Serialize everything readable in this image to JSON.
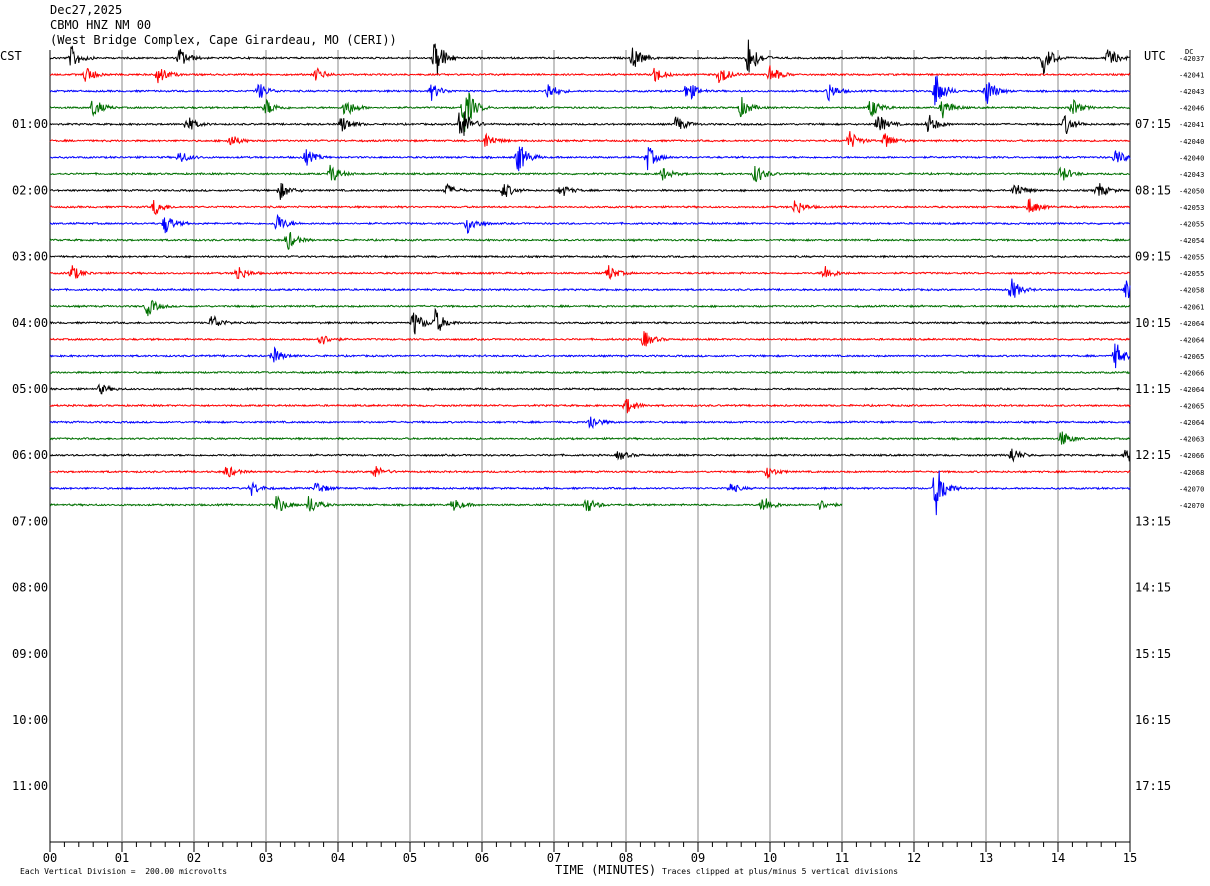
{
  "header": {
    "date": "Dec27,2025",
    "station": "CBMO HNZ NM 00",
    "location": "(West Bridge Complex, Cape Girardeau, MO (CERI))"
  },
  "axis_left_label": "CST",
  "axis_right_label": "UTC",
  "dc_label": "DC",
  "footer": {
    "scale_note": "Each Vertical Division =  200.00 microvolts",
    "xlabel": "TIME (MINUTES)",
    "clip_note": "Traces clipped at plus/minus 5 vertical divisions"
  },
  "chart_data": {
    "type": "line",
    "title": "CBMO HNZ NM 00",
    "xlabel": "TIME (MINUTES)",
    "ylabel": "",
    "xlim": [
      0,
      15
    ],
    "x_ticks": [
      "00",
      "01",
      "02",
      "03",
      "04",
      "05",
      "06",
      "07",
      "08",
      "09",
      "10",
      "11",
      "12",
      "13",
      "14",
      "15"
    ],
    "left_hour_labels": [
      "01:00",
      "02:00",
      "03:00",
      "04:00",
      "05:00",
      "06:00",
      "07:00",
      "08:00",
      "09:00",
      "10:00",
      "11:00"
    ],
    "right_hour_labels": [
      "07:15",
      "08:15",
      "09:15",
      "10:15",
      "11:15",
      "12:15",
      "13:15",
      "14:15",
      "15:15",
      "16:15",
      "17:15"
    ],
    "trace_colors": [
      "#000000",
      "#ff0000",
      "#0000ff",
      "#007000"
    ],
    "trace_count": 28,
    "last_trace_end_minute": 11,
    "dc_offsets": [
      "-42037",
      "-42041",
      "-42043",
      "-42046",
      "-42041",
      "-42040",
      "-42040",
      "-42043",
      "-42050",
      "-42053",
      "-42055",
      "-42054",
      "-42055",
      "-42055",
      "-42058",
      "-42061",
      "-42064",
      "-42064",
      "-42065",
      "-42066",
      "-42064",
      "-42065",
      "-42064",
      "-42063",
      "-42066",
      "-42068",
      "-42070",
      "-42070"
    ],
    "events": [
      {
        "trace": 0,
        "minute": 0.3,
        "amp": 0.7
      },
      {
        "trace": 0,
        "minute": 1.8,
        "amp": 0.6
      },
      {
        "trace": 0,
        "minute": 5.35,
        "amp": 1.4
      },
      {
        "trace": 0,
        "minute": 8.1,
        "amp": 0.7
      },
      {
        "trace": 0,
        "minute": 9.7,
        "amp": 1.2
      },
      {
        "trace": 0,
        "minute": 13.8,
        "amp": 0.9
      },
      {
        "trace": 0,
        "minute": 14.7,
        "amp": 0.6
      },
      {
        "trace": 1,
        "minute": 0.5,
        "amp": 0.5
      },
      {
        "trace": 1,
        "minute": 1.5,
        "amp": 0.6
      },
      {
        "trace": 1,
        "minute": 3.7,
        "amp": 0.4
      },
      {
        "trace": 1,
        "minute": 8.4,
        "amp": 0.5
      },
      {
        "trace": 1,
        "minute": 9.3,
        "amp": 0.6
      },
      {
        "trace": 1,
        "minute": 10.0,
        "amp": 0.6
      },
      {
        "trace": 2,
        "minute": 2.9,
        "amp": 0.5
      },
      {
        "trace": 2,
        "minute": 5.3,
        "amp": 0.5
      },
      {
        "trace": 2,
        "minute": 6.9,
        "amp": 0.6
      },
      {
        "trace": 2,
        "minute": 8.85,
        "amp": 0.7
      },
      {
        "trace": 2,
        "minute": 10.8,
        "amp": 0.6
      },
      {
        "trace": 2,
        "minute": 12.3,
        "amp": 1.1
      },
      {
        "trace": 2,
        "minute": 13.0,
        "amp": 0.9
      },
      {
        "trace": 3,
        "minute": 0.6,
        "amp": 0.6
      },
      {
        "trace": 3,
        "minute": 3.0,
        "amp": 0.5
      },
      {
        "trace": 3,
        "minute": 4.1,
        "amp": 0.6
      },
      {
        "trace": 3,
        "minute": 5.75,
        "amp": 1.6
      },
      {
        "trace": 3,
        "minute": 9.6,
        "amp": 0.6
      },
      {
        "trace": 3,
        "minute": 11.4,
        "amp": 0.6
      },
      {
        "trace": 3,
        "minute": 12.4,
        "amp": 0.6
      },
      {
        "trace": 3,
        "minute": 14.2,
        "amp": 0.5
      },
      {
        "trace": 4,
        "minute": 1.9,
        "amp": 0.5
      },
      {
        "trace": 4,
        "minute": 4.05,
        "amp": 0.5
      },
      {
        "trace": 4,
        "minute": 5.7,
        "amp": 1.3
      },
      {
        "trace": 4,
        "minute": 8.7,
        "amp": 0.5
      },
      {
        "trace": 4,
        "minute": 11.5,
        "amp": 0.6
      },
      {
        "trace": 4,
        "minute": 12.2,
        "amp": 0.6
      },
      {
        "trace": 4,
        "minute": 14.1,
        "amp": 0.6
      },
      {
        "trace": 5,
        "minute": 2.5,
        "amp": 0.4
      },
      {
        "trace": 5,
        "minute": 6.05,
        "amp": 0.5
      },
      {
        "trace": 5,
        "minute": 11.1,
        "amp": 0.6
      },
      {
        "trace": 5,
        "minute": 11.6,
        "amp": 0.5
      },
      {
        "trace": 6,
        "minute": 1.8,
        "amp": 0.4
      },
      {
        "trace": 6,
        "minute": 3.55,
        "amp": 0.5
      },
      {
        "trace": 6,
        "minute": 6.5,
        "amp": 1.0
      },
      {
        "trace": 6,
        "minute": 8.3,
        "amp": 0.7
      },
      {
        "trace": 6,
        "minute": 14.8,
        "amp": 0.5
      },
      {
        "trace": 7,
        "minute": 3.9,
        "amp": 0.6
      },
      {
        "trace": 7,
        "minute": 8.5,
        "amp": 0.4
      },
      {
        "trace": 7,
        "minute": 9.8,
        "amp": 0.6
      },
      {
        "trace": 7,
        "minute": 14.05,
        "amp": 0.5
      },
      {
        "trace": 8,
        "minute": 3.2,
        "amp": 0.5
      },
      {
        "trace": 8,
        "minute": 5.5,
        "amp": 0.4
      },
      {
        "trace": 8,
        "minute": 6.3,
        "amp": 0.5
      },
      {
        "trace": 8,
        "minute": 7.1,
        "amp": 0.4
      },
      {
        "trace": 8,
        "minute": 13.4,
        "amp": 0.5
      },
      {
        "trace": 8,
        "minute": 14.55,
        "amp": 0.5
      },
      {
        "trace": 9,
        "minute": 1.45,
        "amp": 0.5
      },
      {
        "trace": 9,
        "minute": 10.35,
        "amp": 0.5
      },
      {
        "trace": 9,
        "minute": 13.6,
        "amp": 0.5
      },
      {
        "trace": 10,
        "minute": 1.6,
        "amp": 0.6
      },
      {
        "trace": 10,
        "minute": 3.15,
        "amp": 0.6
      },
      {
        "trace": 10,
        "minute": 5.8,
        "amp": 0.6
      },
      {
        "trace": 11,
        "minute": 3.3,
        "amp": 0.6
      },
      {
        "trace": 13,
        "minute": 0.3,
        "amp": 0.5
      },
      {
        "trace": 13,
        "minute": 2.6,
        "amp": 0.5
      },
      {
        "trace": 13,
        "minute": 7.75,
        "amp": 0.5
      },
      {
        "trace": 13,
        "minute": 10.75,
        "amp": 0.5
      },
      {
        "trace": 14,
        "minute": 13.35,
        "amp": 0.7
      },
      {
        "trace": 14,
        "minute": 14.95,
        "amp": 0.7
      },
      {
        "trace": 15,
        "minute": 1.35,
        "amp": 0.6
      },
      {
        "trace": 16,
        "minute": 2.25,
        "amp": 0.5
      },
      {
        "trace": 16,
        "minute": 5.05,
        "amp": 0.8
      },
      {
        "trace": 16,
        "minute": 5.35,
        "amp": 0.8
      },
      {
        "trace": 17,
        "minute": 3.75,
        "amp": 0.4
      },
      {
        "trace": 17,
        "minute": 8.25,
        "amp": 0.5
      },
      {
        "trace": 18,
        "minute": 3.1,
        "amp": 0.5
      },
      {
        "trace": 18,
        "minute": 14.8,
        "amp": 0.8
      },
      {
        "trace": 20,
        "minute": 0.7,
        "amp": 0.3
      },
      {
        "trace": 21,
        "minute": 8.0,
        "amp": 0.5
      },
      {
        "trace": 22,
        "minute": 7.5,
        "amp": 0.5
      },
      {
        "trace": 23,
        "minute": 14.05,
        "amp": 0.5
      },
      {
        "trace": 24,
        "minute": 7.9,
        "amp": 0.3
      },
      {
        "trace": 24,
        "minute": 13.35,
        "amp": 0.5
      },
      {
        "trace": 24,
        "minute": 14.95,
        "amp": 0.5
      },
      {
        "trace": 25,
        "minute": 2.45,
        "amp": 0.4
      },
      {
        "trace": 25,
        "minute": 4.5,
        "amp": 0.4
      },
      {
        "trace": 25,
        "minute": 9.95,
        "amp": 0.4
      },
      {
        "trace": 26,
        "minute": 2.8,
        "amp": 0.4
      },
      {
        "trace": 26,
        "minute": 3.7,
        "amp": 0.4
      },
      {
        "trace": 26,
        "minute": 9.45,
        "amp": 0.3
      },
      {
        "trace": 26,
        "minute": 12.3,
        "amp": 1.6
      },
      {
        "trace": 27,
        "minute": 3.15,
        "amp": 0.6
      },
      {
        "trace": 27,
        "minute": 3.6,
        "amp": 0.6
      },
      {
        "trace": 27,
        "minute": 5.6,
        "amp": 0.4
      },
      {
        "trace": 27,
        "minute": 7.45,
        "amp": 0.5
      },
      {
        "trace": 27,
        "minute": 9.9,
        "amp": 0.6
      },
      {
        "trace": 27,
        "minute": 10.7,
        "amp": 0.3
      }
    ]
  }
}
